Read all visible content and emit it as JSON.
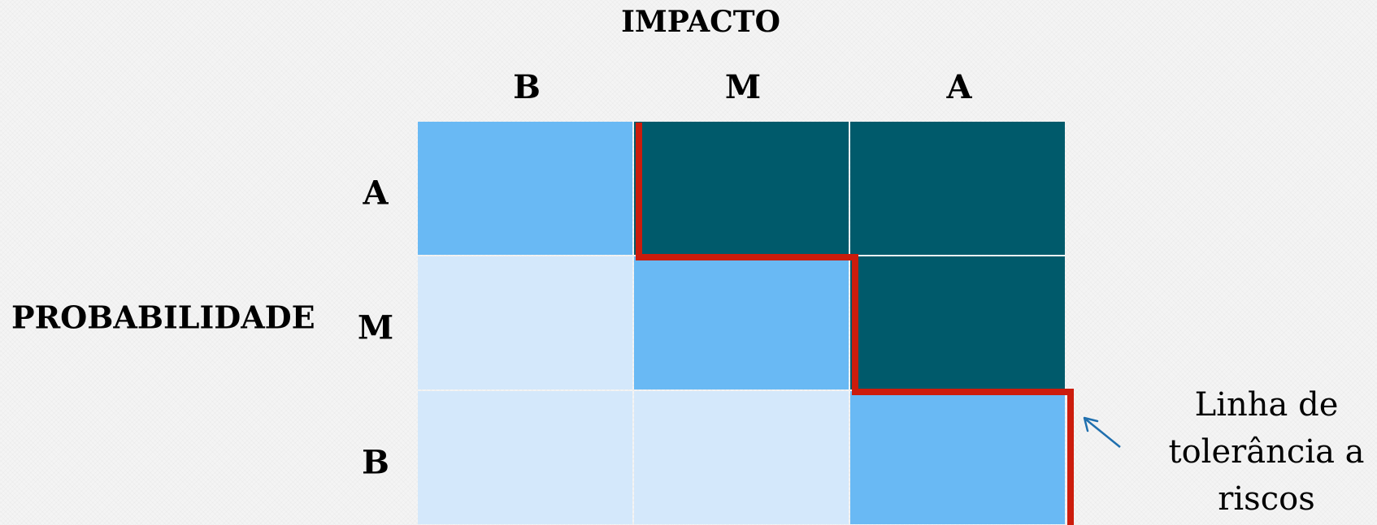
{
  "impact_title": "IMPACTO",
  "impact_levels": [
    "B",
    "M",
    "A"
  ],
  "probability_title": "PROBABILIDADE",
  "probability_levels": [
    "A",
    "M",
    "B"
  ],
  "cells": [
    [
      "medium",
      "high",
      "high"
    ],
    [
      "low",
      "medium",
      "high"
    ],
    [
      "low",
      "low",
      "medium"
    ]
  ],
  "colors": {
    "low": "#d4e8fb",
    "medium": "#69b9f4",
    "high": "#005a6b",
    "tolerance_line": "#cc1c0c",
    "arrow": "#1f6fae"
  },
  "tolerance_label": "Linha de tolerância a riscos"
}
